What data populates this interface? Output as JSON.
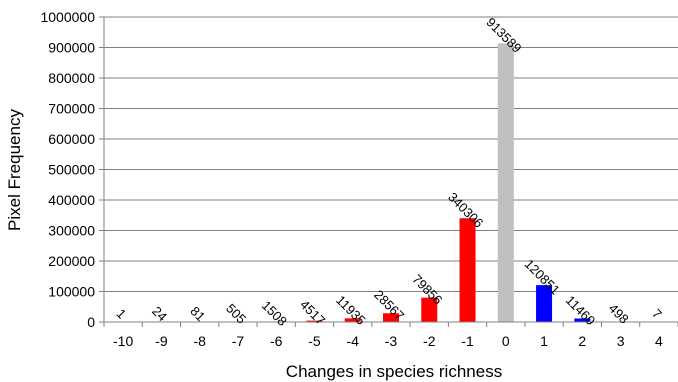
{
  "chart_data": {
    "type": "bar",
    "title": "",
    "xlabel": "Changes in species richness",
    "ylabel": "Pixel Frequency",
    "ylim": [
      0,
      1000000
    ],
    "yticks": [
      "0",
      "100000",
      "200000",
      "300000",
      "400000",
      "500000",
      "600000",
      "700000",
      "800000",
      "900000",
      "1000000"
    ],
    "grid": "horizontal",
    "legend": "none",
    "categories": [
      "-10",
      "-9",
      "-8",
      "-7",
      "-6",
      "-5",
      "-4",
      "-3",
      "-2",
      "-1",
      "0",
      "1",
      "2",
      "3",
      "4"
    ],
    "values": [
      1,
      24,
      81,
      505,
      1508,
      4517,
      11935,
      28567,
      79856,
      340306,
      913589,
      120851,
      11460,
      498,
      7
    ],
    "data_labels": [
      "1",
      "24",
      "81",
      "505",
      "1508",
      "4517",
      "11935",
      "28567",
      "79856",
      "340306",
      "913589",
      "120851",
      "11460",
      "498",
      "7"
    ],
    "bar_colors": [
      "#ff0000",
      "#ff0000",
      "#ff0000",
      "#ff0000",
      "#ff0000",
      "#ff0000",
      "#ff0000",
      "#ff0000",
      "#ff0000",
      "#ff0000",
      "#c0c0c0",
      "#0000ff",
      "#0000ff",
      "#0000ff",
      "#0000ff"
    ],
    "colors": {
      "decrease": "#ff0000",
      "no_change": "#c0c0c0",
      "increase": "#0000ff",
      "grid": "#808080",
      "axis": "#808080"
    }
  }
}
